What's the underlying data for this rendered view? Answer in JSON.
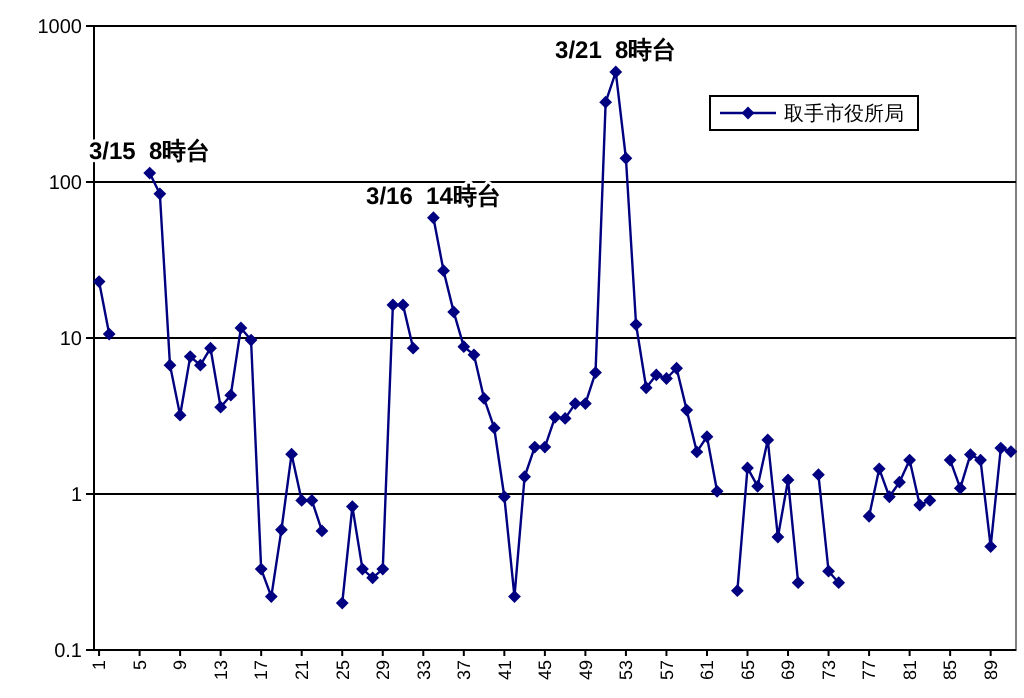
{
  "chart_data": {
    "type": "line",
    "x": [
      1,
      2,
      3,
      4,
      5,
      6,
      7,
      8,
      9,
      10,
      11,
      12,
      13,
      14,
      15,
      16,
      17,
      18,
      19,
      20,
      21,
      22,
      23,
      24,
      25,
      26,
      27,
      28,
      29,
      30,
      31,
      32,
      33,
      34,
      35,
      36,
      37,
      38,
      39,
      40,
      41,
      42,
      43,
      44,
      45,
      46,
      47,
      48,
      49,
      50,
      51,
      52,
      53,
      54,
      55,
      56,
      57,
      58,
      59,
      60,
      61,
      62,
      63,
      64,
      65,
      66,
      67,
      68,
      69,
      70,
      71,
      72,
      73,
      74,
      75,
      76,
      77,
      78,
      79,
      80,
      81,
      82,
      83,
      84,
      85,
      86,
      87,
      88,
      89,
      90,
      91
    ],
    "series": [
      {
        "name": "取手市役所局",
        "color": "#000080",
        "values": [
          23,
          10.6,
          null,
          null,
          null,
          114,
          84,
          6.7,
          3.2,
          7.6,
          6.7,
          8.6,
          3.6,
          4.3,
          11.6,
          9.7,
          0.33,
          0.22,
          0.59,
          1.8,
          0.91,
          0.91,
          0.58,
          null,
          0.2,
          0.83,
          0.33,
          0.29,
          0.33,
          16.3,
          16.3,
          8.6,
          null,
          59,
          27,
          14.7,
          8.8,
          7.8,
          4.1,
          2.65,
          0.96,
          0.22,
          1.29,
          2,
          2,
          3.1,
          3.05,
          3.8,
          3.8,
          6,
          325,
          507,
          142,
          12.2,
          4.8,
          5.8,
          5.5,
          6.4,
          3.45,
          1.86,
          2.33,
          1.04,
          null,
          0.24,
          1.47,
          1.12,
          2.22,
          0.53,
          1.23,
          0.27,
          null,
          1.33,
          0.32,
          0.27,
          null,
          null,
          0.72,
          1.45,
          0.96,
          1.19,
          1.65,
          0.85,
          0.91,
          null,
          1.65,
          1.09,
          1.79,
          1.65,
          0.46,
          1.97,
          1.87
        ]
      }
    ],
    "xlim": [
      0.5,
      91.5
    ],
    "xticks": [
      1,
      5,
      9,
      13,
      17,
      21,
      25,
      29,
      33,
      37,
      41,
      45,
      49,
      53,
      57,
      61,
      65,
      69,
      73,
      77,
      81,
      85,
      89
    ],
    "log": "y",
    "ylim": [
      0.1,
      1000
    ],
    "yticks": [
      0.1,
      1,
      10,
      100,
      1000
    ],
    "grid": "y",
    "legend": "top right",
    "marker": "diamond",
    "line_style": "solid",
    "annotations": [
      {
        "text": "3/15  8時台",
        "x": 6,
        "y": 114
      },
      {
        "text": "3/16  14時台",
        "x": 34,
        "y": 59
      },
      {
        "text": "3/21  8時台",
        "x": 52,
        "y": 507
      }
    ]
  }
}
